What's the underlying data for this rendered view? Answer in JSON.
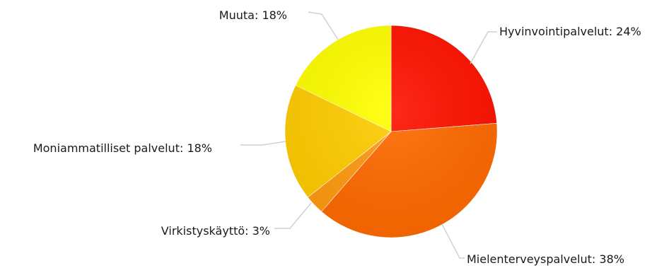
{
  "chart_data": {
    "type": "pie",
    "title": "",
    "slices": [
      {
        "label": "Hyvinvointipalvelut",
        "value": 24,
        "display": "24%",
        "color": "#ff1200"
      },
      {
        "label": "Mielenterveyspalvelut",
        "value": 38,
        "display": "38%",
        "color": "#ff6a00"
      },
      {
        "label": "Virkistyskäyttö",
        "value": 3,
        "display": "3%",
        "color": "#ff9a10"
      },
      {
        "label": "Moniammatilliset palvelut",
        "value": 18,
        "display": "18%",
        "color": "#ffcc00"
      },
      {
        "label": "Muuta",
        "value": 18,
        "display": "18%",
        "color": "#ffff00"
      }
    ],
    "start_angle_deg": 0,
    "direction": "clockwise",
    "legend": "none",
    "label_style": "outside-with-leader-lines"
  }
}
